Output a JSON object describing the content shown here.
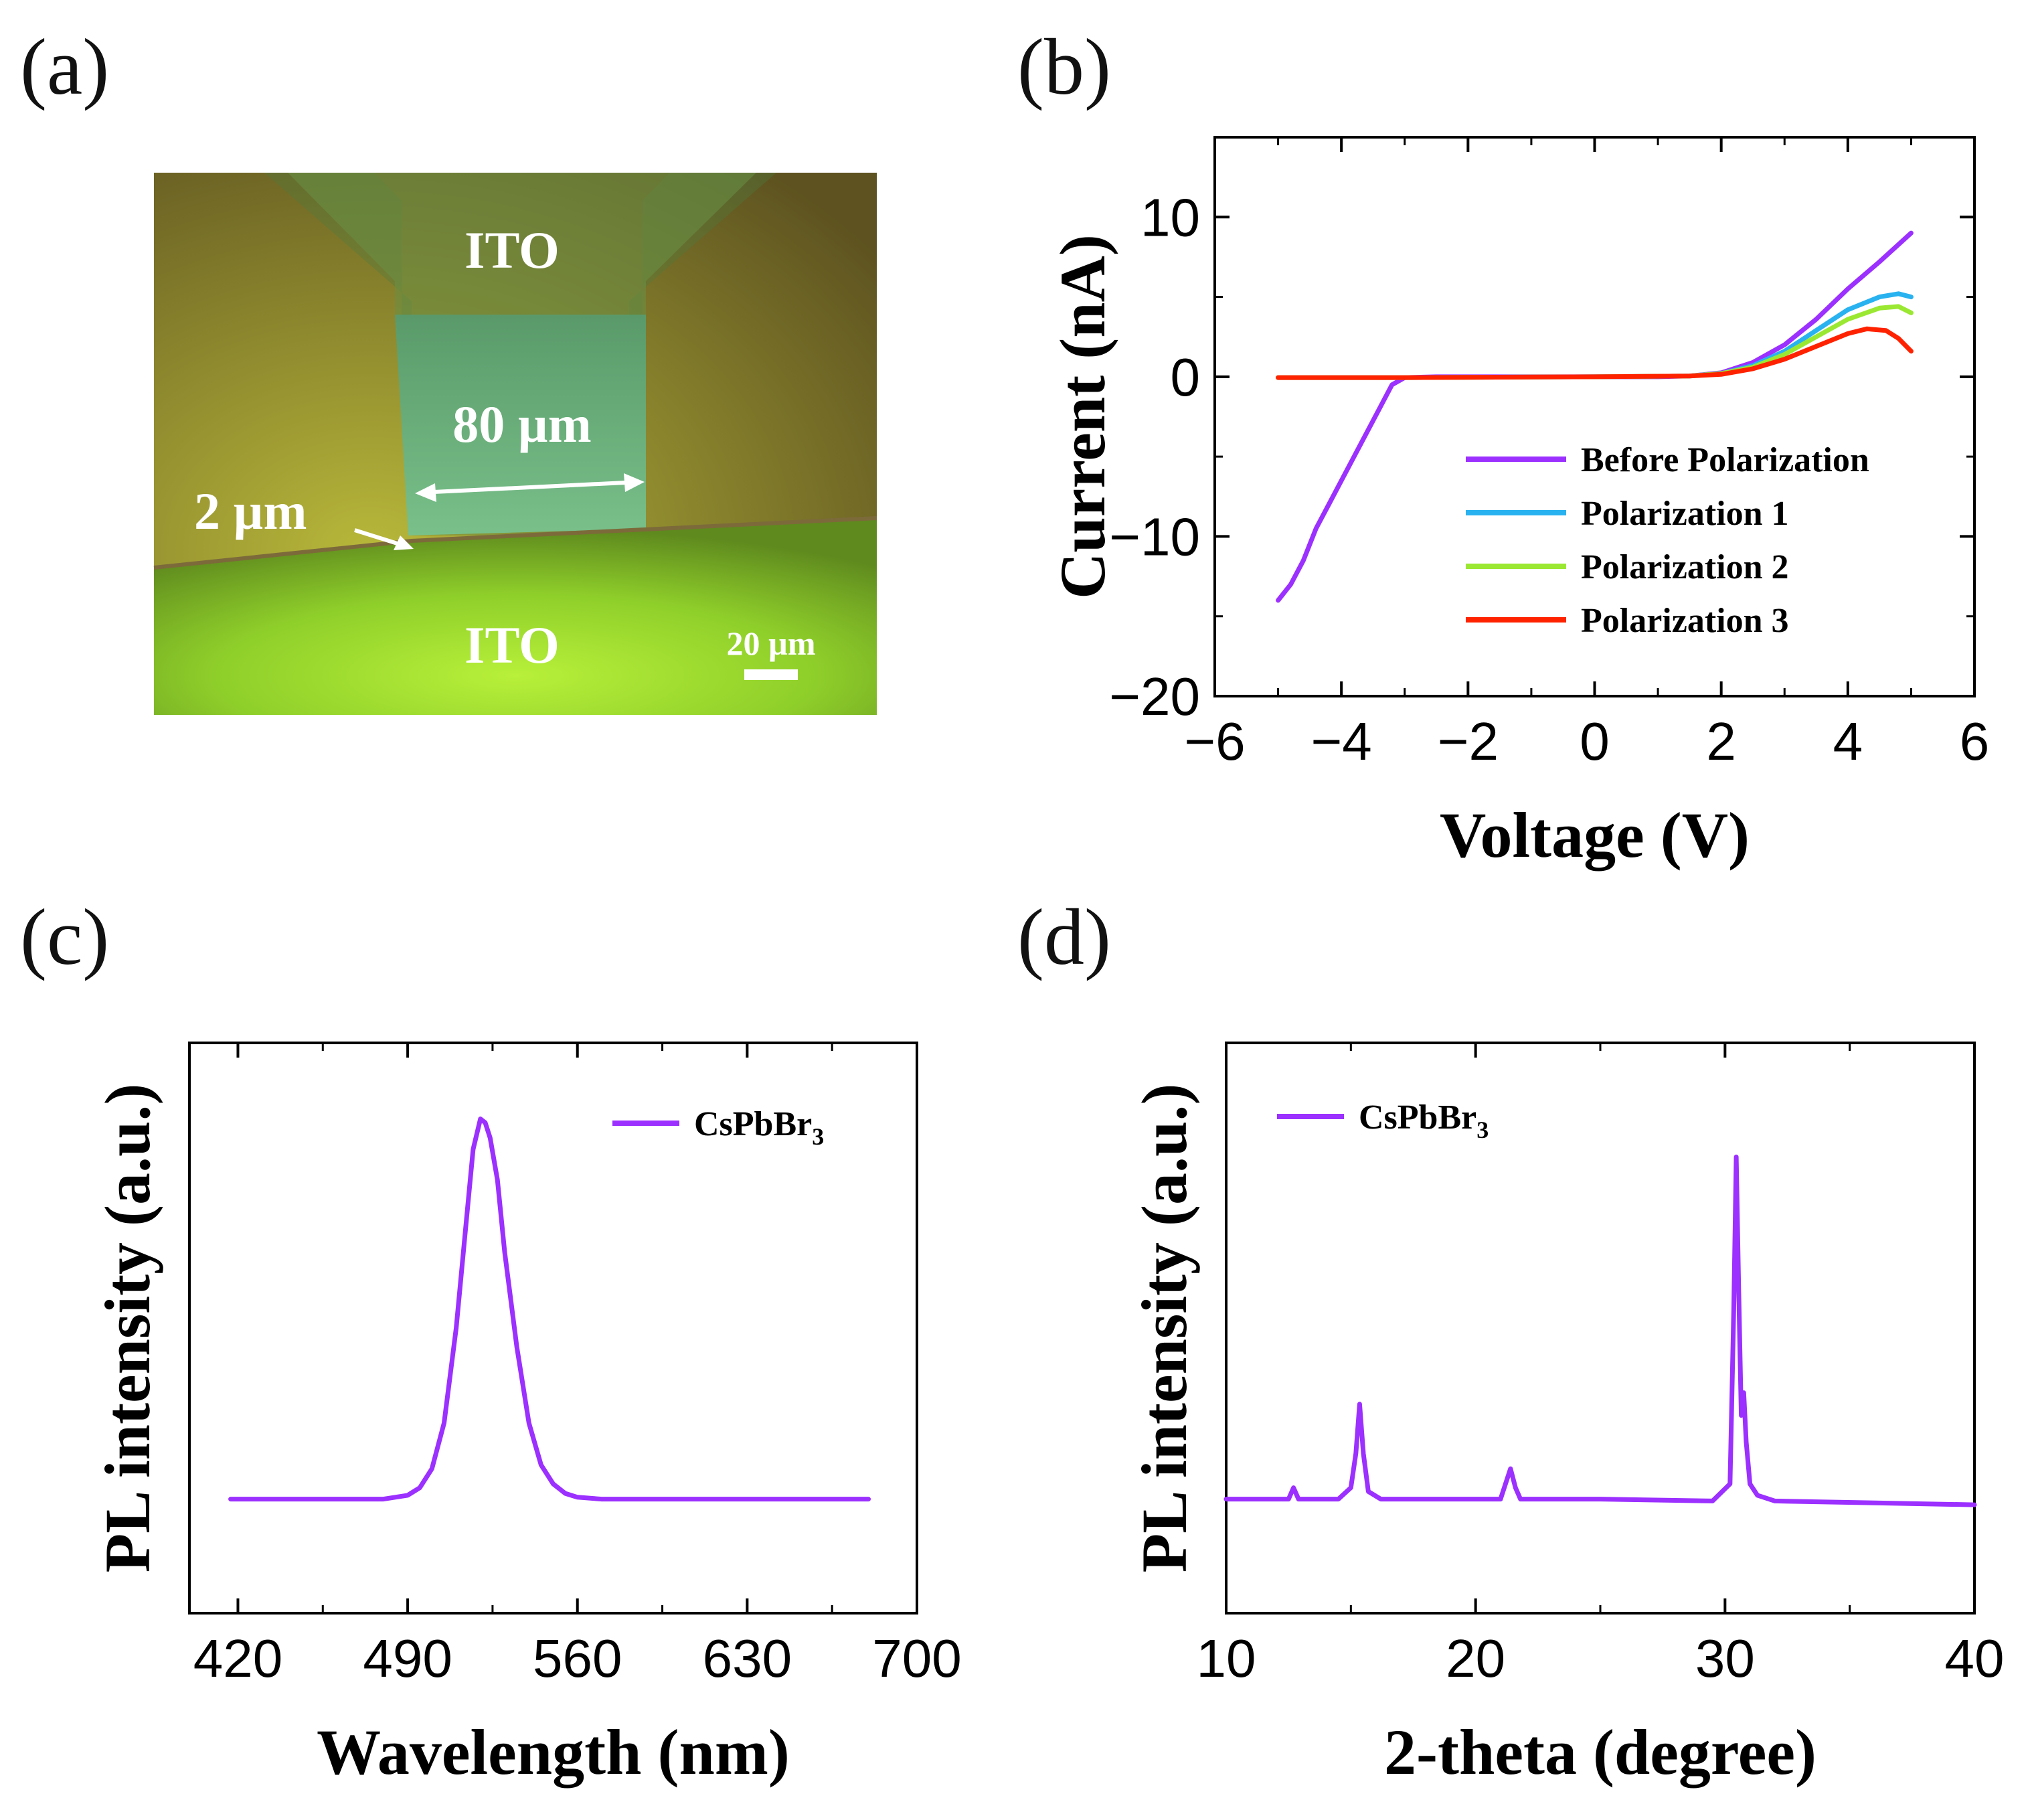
{
  "panels": {
    "a": {
      "letter": "(a)",
      "labels": {
        "ito_top": "ITO",
        "ito_bottom": "ITO",
        "channel_width": "80 µm",
        "gap": "2 µm",
        "scale_bar": "20 µm"
      }
    },
    "b": {
      "letter": "(b)"
    },
    "c": {
      "letter": "(c)"
    },
    "d": {
      "letter": "(d)"
    }
  },
  "colors": {
    "before": "#9b30ff",
    "pol1": "#29b2f0",
    "pol2": "#9be832",
    "pol3": "#ff2200",
    "pl": "#9b30ff"
  },
  "chart_data": [
    {
      "id": "b",
      "type": "line",
      "xlabel": "Voltage (V)",
      "ylabel": "Current (nA)",
      "xlim": [
        -6,
        6
      ],
      "ylim": [
        -20,
        15
      ],
      "xticks": [
        -6,
        -4,
        -2,
        0,
        2,
        4,
        6
      ],
      "yticks": [
        -20,
        -10,
        0,
        10
      ],
      "legend_position": "lower-right",
      "series": [
        {
          "name": "Before Polarization",
          "color": "#9b30ff",
          "x": [
            -5.0,
            -4.8,
            -4.6,
            -4.4,
            -4.2,
            -4.0,
            -3.8,
            -3.6,
            -3.4,
            -3.2,
            -3.0,
            -2.5,
            -2.0,
            -1.0,
            0.0,
            1.0,
            1.5,
            2.0,
            2.5,
            3.0,
            3.5,
            4.0,
            4.5,
            5.0
          ],
          "y": [
            -14.0,
            -13.0,
            -11.5,
            -9.5,
            -8.0,
            -6.5,
            -5.0,
            -3.5,
            -2.0,
            -0.5,
            -0.05,
            0.0,
            0.0,
            0.0,
            0.0,
            0.0,
            0.05,
            0.25,
            0.9,
            2.0,
            3.6,
            5.5,
            7.2,
            9.0
          ]
        },
        {
          "name": "Polarization 1",
          "color": "#29b2f0",
          "x": [
            -5.0,
            -3.0,
            0.0,
            1.5,
            2.0,
            2.5,
            3.0,
            3.5,
            4.0,
            4.5,
            4.8,
            5.0
          ],
          "y": [
            -0.05,
            -0.05,
            0.0,
            0.05,
            0.2,
            0.7,
            1.6,
            2.9,
            4.2,
            5.0,
            5.2,
            5.0
          ]
        },
        {
          "name": "Polarization 2",
          "color": "#9be832",
          "x": [
            -5.0,
            -3.0,
            0.0,
            1.5,
            2.0,
            2.5,
            3.0,
            3.5,
            4.0,
            4.5,
            4.8,
            5.0
          ],
          "y": [
            -0.05,
            -0.05,
            0.0,
            0.05,
            0.2,
            0.6,
            1.4,
            2.5,
            3.6,
            4.3,
            4.4,
            4.0
          ]
        },
        {
          "name": "Polarization 3",
          "color": "#ff2200",
          "x": [
            -5.0,
            -3.0,
            0.0,
            1.5,
            2.0,
            2.5,
            3.0,
            3.5,
            4.0,
            4.3,
            4.6,
            4.8,
            5.0
          ],
          "y": [
            -0.05,
            -0.05,
            0.0,
            0.05,
            0.15,
            0.5,
            1.1,
            1.9,
            2.7,
            3.0,
            2.9,
            2.4,
            1.6
          ]
        }
      ]
    },
    {
      "id": "c",
      "type": "line",
      "xlabel": "Wavelength (nm)",
      "ylabel": "PL intensity (a.u.)",
      "xlim": [
        400,
        700
      ],
      "ylim": [
        -0.3,
        1.2
      ],
      "xticks": [
        420,
        490,
        560,
        630,
        700
      ],
      "yticks": [],
      "legend_position": "top-right",
      "series": [
        {
          "name": "CsPbBr",
          "name_sub": "3",
          "color": "#9b30ff",
          "x": [
            417,
            480,
            490,
            495,
            500,
            505,
            510,
            514,
            517,
            520,
            522,
            524,
            527,
            530,
            535,
            540,
            545,
            550,
            555,
            560,
            570,
            600,
            650,
            680
          ],
          "y": [
            0.0,
            0.0,
            0.01,
            0.03,
            0.08,
            0.2,
            0.45,
            0.72,
            0.92,
            1.0,
            0.99,
            0.95,
            0.84,
            0.65,
            0.4,
            0.2,
            0.09,
            0.04,
            0.015,
            0.005,
            0.0,
            0.0,
            0.0,
            0.0
          ]
        }
      ]
    },
    {
      "id": "d",
      "type": "line",
      "xlabel": "2-theta (degree)",
      "ylabel": "PL intensity (a.u.)",
      "xlim": [
        10,
        40
      ],
      "ylim": [
        -0.3,
        1.2
      ],
      "xticks": [
        10,
        20,
        30,
        40
      ],
      "yticks": [],
      "legend_position": "top-left",
      "series": [
        {
          "name": "CsPbBr",
          "name_sub": "3",
          "color": "#9b30ff",
          "x": [
            10.0,
            12.5,
            12.7,
            12.9,
            14.5,
            15.0,
            15.2,
            15.35,
            15.5,
            15.7,
            16.2,
            18.0,
            21.0,
            21.4,
            21.6,
            21.8,
            22.2,
            25.0,
            29.5,
            30.2,
            30.35,
            30.45,
            30.55,
            30.65,
            30.75,
            30.85,
            31.0,
            31.3,
            32.0,
            36.0,
            40.0
          ],
          "y": [
            0.0,
            0.0,
            0.03,
            0.0,
            0.0,
            0.03,
            0.12,
            0.25,
            0.12,
            0.02,
            0.0,
            0.0,
            0.0,
            0.08,
            0.03,
            0.0,
            0.0,
            0.0,
            -0.005,
            0.04,
            0.5,
            0.9,
            0.55,
            0.22,
            0.28,
            0.15,
            0.04,
            0.01,
            -0.005,
            -0.01,
            -0.015
          ]
        }
      ]
    }
  ]
}
